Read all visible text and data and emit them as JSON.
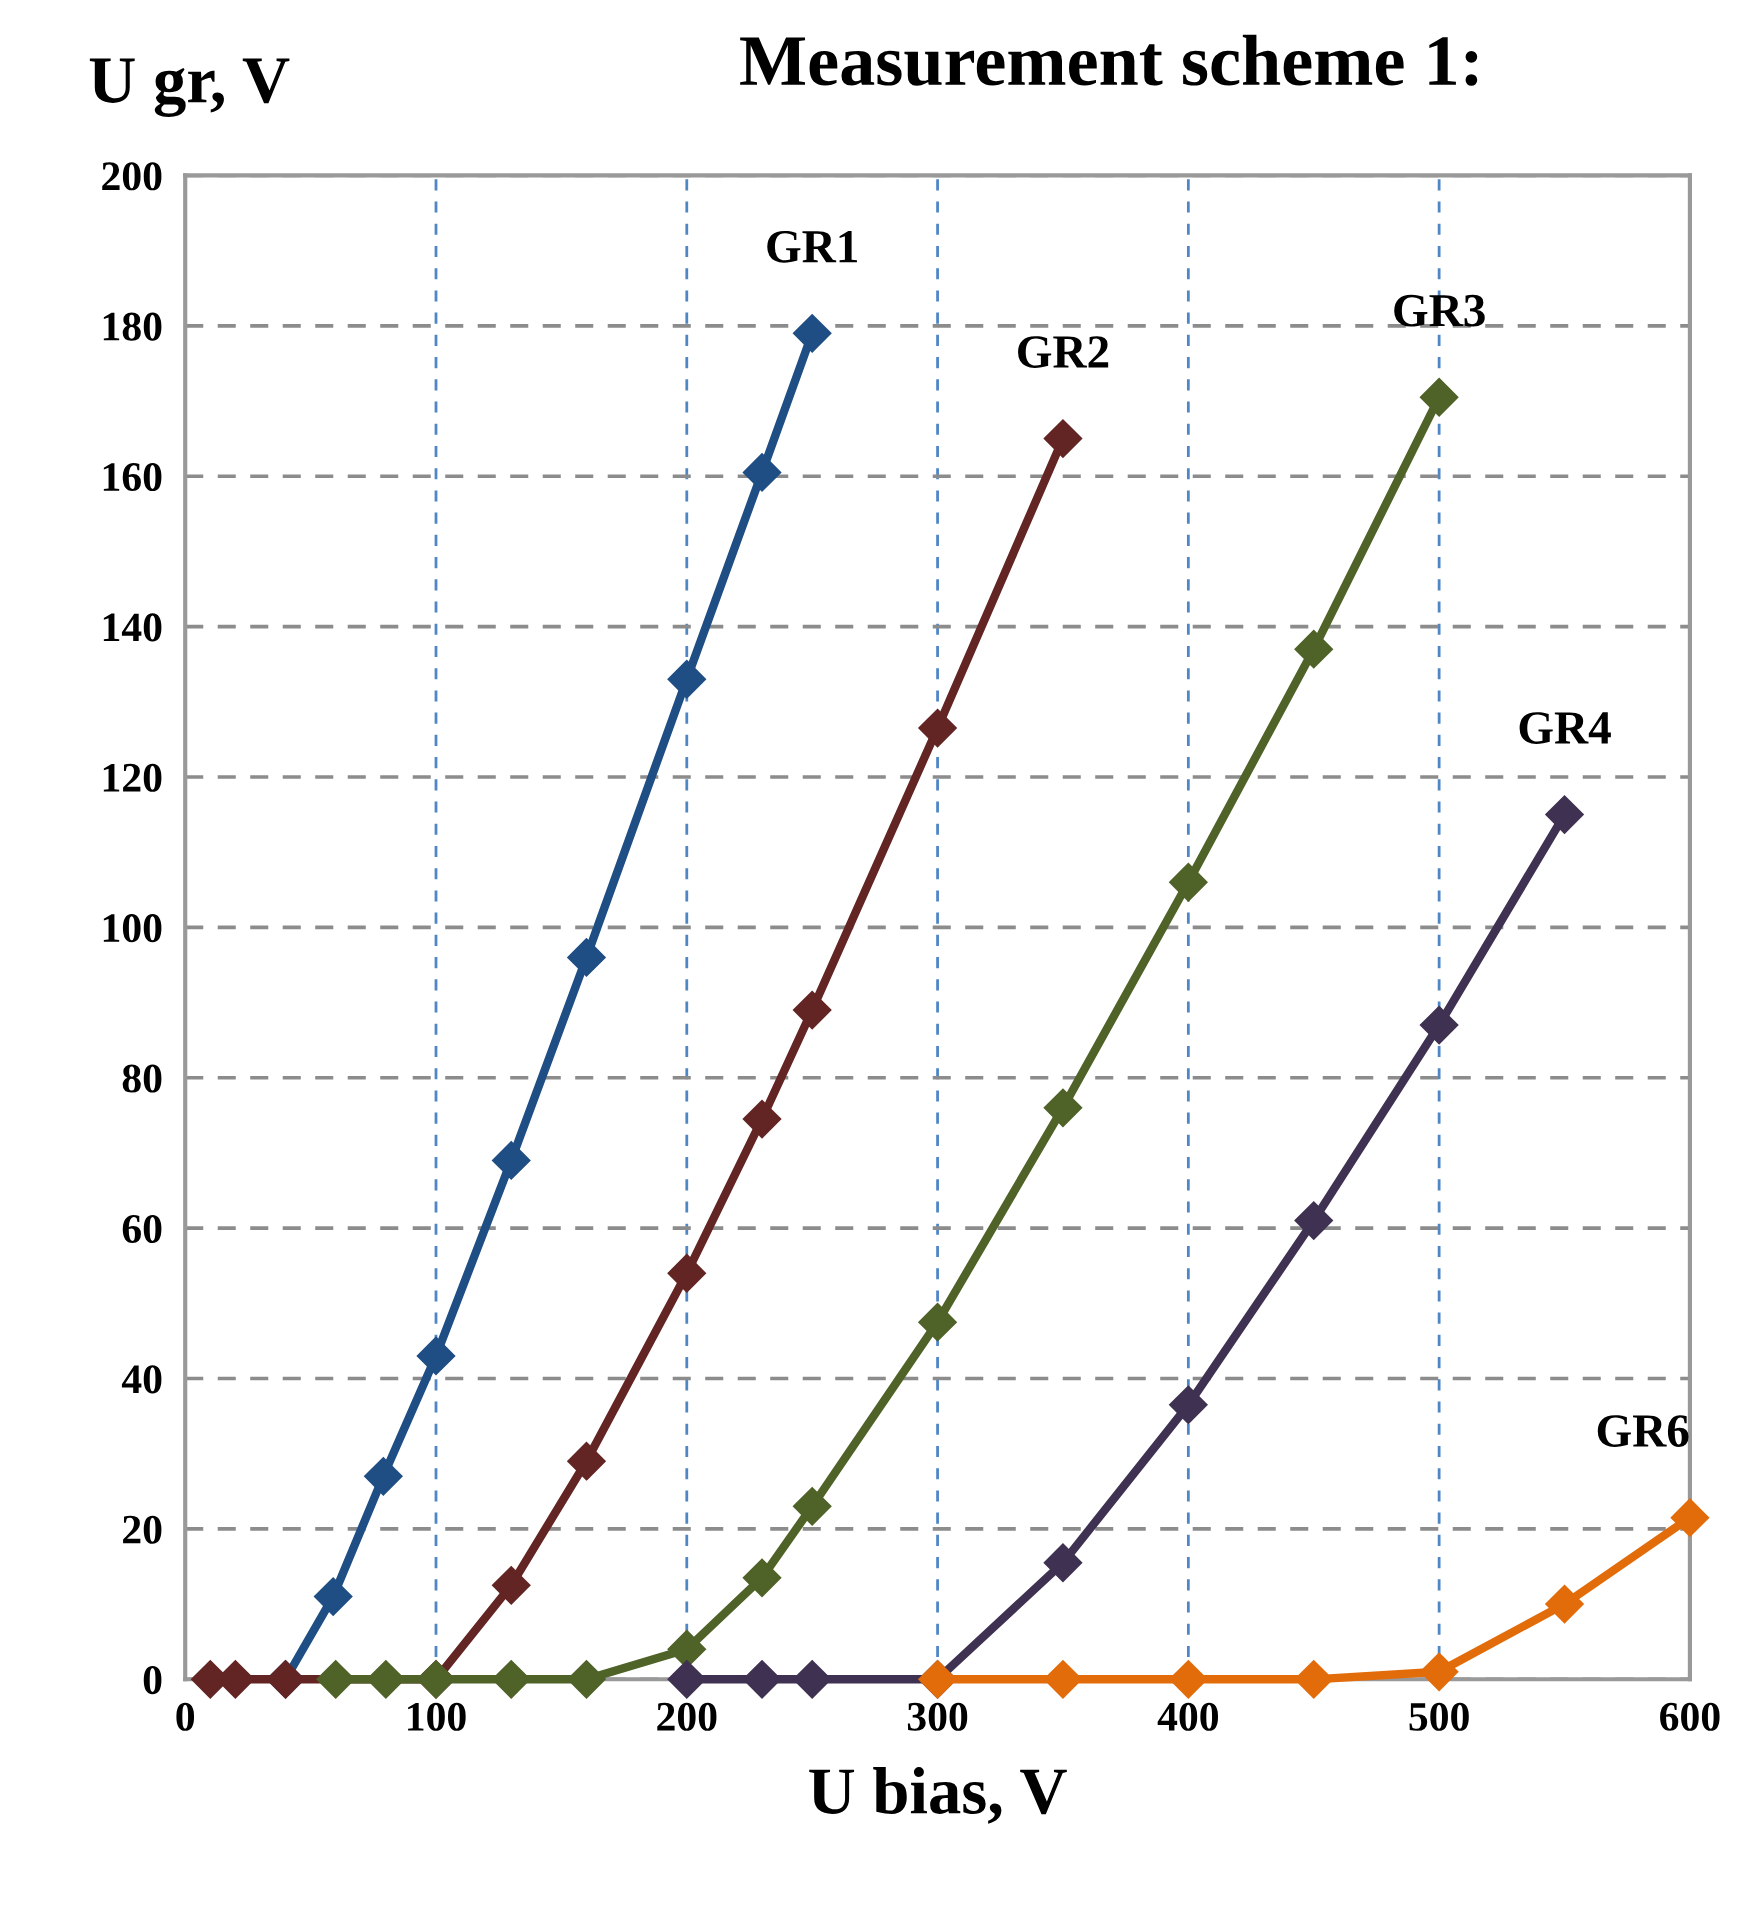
{
  "chart_data": {
    "type": "line",
    "title": "Measurement scheme 1:",
    "xlabel": "U bias, V",
    "ylabel": "U gr, V",
    "xlim": [
      0,
      600
    ],
    "xticks": [
      0,
      100,
      200,
      300,
      400,
      500,
      600
    ],
    "ylim": [
      0,
      200
    ],
    "yticks": [
      0,
      20,
      40,
      60,
      80,
      100,
      120,
      140,
      160,
      180,
      200
    ],
    "grid": true,
    "marker": "diamond",
    "line_style": "solid",
    "series": [
      {
        "name": "GR1",
        "color": "#1f4e85",
        "x": [
          40,
          59,
          79,
          100,
          130,
          160,
          200,
          230,
          250
        ],
        "values": [
          0,
          11,
          27,
          43,
          69,
          96,
          133,
          160.5,
          179
        ]
      },
      {
        "name": "GR2",
        "color": "#632523",
        "x": [
          10,
          20,
          40,
          100,
          130,
          160,
          200,
          230,
          250,
          300,
          350
        ],
        "values": [
          0,
          0,
          0,
          0,
          12.5,
          29,
          54,
          74.5,
          89,
          126.5,
          165
        ]
      },
      {
        "name": "GR3",
        "color": "#4f6228",
        "x": [
          60,
          80,
          100,
          130,
          160,
          200,
          230,
          250,
          300,
          350,
          400,
          450,
          500
        ],
        "values": [
          0,
          0,
          0,
          0,
          0,
          4,
          13.5,
          23,
          47.5,
          76,
          106,
          137,
          170.5
        ]
      },
      {
        "name": "GR4",
        "color": "#3f3151",
        "x": [
          200,
          230,
          250,
          300,
          350,
          400,
          450,
          500,
          550
        ],
        "values": [
          0,
          0,
          0,
          0,
          15.5,
          36.5,
          61,
          87,
          115
        ]
      },
      {
        "name": "GR6",
        "color": "#e36c0a",
        "x": [
          300,
          350,
          400,
          450,
          500,
          550,
          600
        ],
        "values": [
          0,
          0,
          0,
          0,
          1,
          10,
          21.5
        ]
      }
    ]
  }
}
